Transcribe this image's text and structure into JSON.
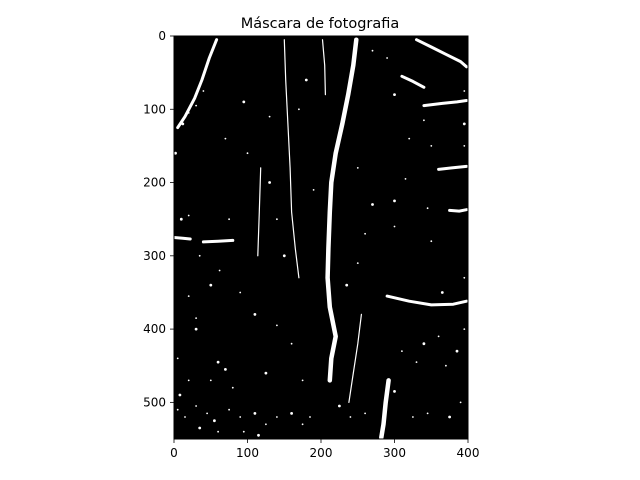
{
  "chart_data": {
    "type": "heatmap",
    "title": "Máscara de fotografia",
    "xlabel": "",
    "ylabel": "",
    "xlim": [
      0,
      400
    ],
    "ylim": [
      550,
      0
    ],
    "x_ticks": [
      0,
      100,
      200,
      300,
      400
    ],
    "y_ticks": [
      0,
      100,
      200,
      300,
      400,
      500
    ],
    "x_tick_labels": [
      "0",
      "100",
      "200",
      "300",
      "400"
    ],
    "y_tick_labels": [
      "0",
      "100",
      "200",
      "300",
      "400",
      "500"
    ],
    "colormap": "binary mask (black background, white foreground)",
    "background_color": "#000000",
    "foreground_color": "#ffffff",
    "grid": false,
    "mask_features": [
      {
        "kind": "main-vertical-crack",
        "points": [
          [
            248,
            5
          ],
          [
            244,
            40
          ],
          [
            237,
            80
          ],
          [
            229,
            120
          ],
          [
            220,
            160
          ],
          [
            214,
            200
          ],
          [
            212,
            240
          ],
          [
            210,
            290
          ],
          [
            209,
            330
          ],
          [
            212,
            370
          ],
          [
            220,
            410
          ],
          [
            214,
            440
          ],
          [
            212,
            470
          ]
        ]
      },
      {
        "kind": "lower-vertical-crack",
        "points": [
          [
            292,
            470
          ],
          [
            288,
            500
          ],
          [
            285,
            530
          ],
          [
            282,
            548
          ]
        ]
      },
      {
        "kind": "left-diagonal-crack",
        "points": [
          [
            58,
            5
          ],
          [
            48,
            30
          ],
          [
            38,
            60
          ],
          [
            28,
            85
          ],
          [
            15,
            110
          ],
          [
            5,
            125
          ]
        ]
      },
      {
        "kind": "horizontal-crack",
        "points": [
          [
            290,
            355
          ],
          [
            320,
            362
          ],
          [
            350,
            367
          ],
          [
            380,
            366
          ],
          [
            398,
            362
          ]
        ]
      },
      {
        "kind": "horizontal-crack",
        "points": [
          [
            360,
            182
          ],
          [
            378,
            180
          ],
          [
            398,
            178
          ]
        ]
      },
      {
        "kind": "horizontal-crack",
        "points": [
          [
            340,
            95
          ],
          [
            365,
            92
          ],
          [
            385,
            90
          ],
          [
            398,
            88
          ]
        ]
      },
      {
        "kind": "horizontal-crack",
        "points": [
          [
            330,
            5
          ],
          [
            350,
            15
          ],
          [
            370,
            25
          ],
          [
            390,
            35
          ],
          [
            398,
            42
          ]
        ]
      },
      {
        "kind": "horizontal-crack",
        "points": [
          [
            310,
            55
          ],
          [
            325,
            62
          ],
          [
            340,
            70
          ]
        ]
      },
      {
        "kind": "horizontal-crack",
        "points": [
          [
            0,
            275
          ],
          [
            12,
            276
          ],
          [
            22,
            277
          ]
        ]
      },
      {
        "kind": "horizontal-crack",
        "points": [
          [
            40,
            281
          ],
          [
            60,
            280
          ],
          [
            80,
            279
          ]
        ]
      },
      {
        "kind": "horizontal-crack",
        "points": [
          [
            375,
            238
          ],
          [
            388,
            239
          ],
          [
            398,
            237
          ]
        ]
      },
      {
        "kind": "thin-vertical-crack",
        "points": [
          [
            150,
            5
          ],
          [
            152,
            60
          ],
          [
            155,
            120
          ],
          [
            158,
            180
          ],
          [
            160,
            240
          ],
          [
            165,
            290
          ],
          [
            170,
            330
          ]
        ]
      },
      {
        "kind": "thin-vertical-crack",
        "points": [
          [
            118,
            180
          ],
          [
            116,
            240
          ],
          [
            114,
            300
          ]
        ]
      },
      {
        "kind": "thin-vertical-crack",
        "points": [
          [
            255,
            380
          ],
          [
            250,
            420
          ],
          [
            244,
            460
          ],
          [
            238,
            500
          ]
        ]
      },
      {
        "kind": "thin-vertical-crack",
        "points": [
          [
            202,
            5
          ],
          [
            205,
            40
          ],
          [
            206,
            80
          ]
        ]
      }
    ],
    "mask_specks": [
      [
        10,
        250
      ],
      [
        20,
        245
      ],
      [
        35,
        300
      ],
      [
        50,
        340
      ],
      [
        62,
        320
      ],
      [
        90,
        350
      ],
      [
        30,
        400
      ],
      [
        5,
        440
      ],
      [
        20,
        470
      ],
      [
        8,
        490
      ],
      [
        30,
        505
      ],
      [
        45,
        515
      ],
      [
        55,
        525
      ],
      [
        75,
        510
      ],
      [
        90,
        520
      ],
      [
        110,
        515
      ],
      [
        125,
        530
      ],
      [
        140,
        520
      ],
      [
        160,
        515
      ],
      [
        175,
        530
      ],
      [
        185,
        520
      ],
      [
        115,
        545
      ],
      [
        95,
        540
      ],
      [
        60,
        540
      ],
      [
        35,
        535
      ],
      [
        15,
        520
      ],
      [
        5,
        510
      ],
      [
        225,
        505
      ],
      [
        240,
        520
      ],
      [
        260,
        515
      ],
      [
        300,
        485
      ],
      [
        325,
        520
      ],
      [
        345,
        515
      ],
      [
        375,
        520
      ],
      [
        390,
        500
      ],
      [
        370,
        450
      ],
      [
        385,
        430
      ],
      [
        395,
        400
      ],
      [
        360,
        410
      ],
      [
        340,
        420
      ],
      [
        310,
        430
      ],
      [
        330,
        445
      ],
      [
        365,
        350
      ],
      [
        395,
        330
      ],
      [
        320,
        140
      ],
      [
        300,
        80
      ],
      [
        290,
        30
      ],
      [
        270,
        20
      ],
      [
        180,
        60
      ],
      [
        170,
        100
      ],
      [
        130,
        110
      ],
      [
        95,
        90
      ],
      [
        70,
        140
      ],
      [
        100,
        160
      ],
      [
        130,
        200
      ],
      [
        190,
        210
      ],
      [
        250,
        180
      ],
      [
        270,
        230
      ],
      [
        300,
        260
      ],
      [
        350,
        280
      ],
      [
        110,
        380
      ],
      [
        140,
        395
      ],
      [
        160,
        420
      ],
      [
        70,
        455
      ],
      [
        80,
        480
      ],
      [
        50,
        470
      ],
      [
        125,
        460
      ],
      [
        30,
        385
      ],
      [
        395,
        150
      ],
      [
        395,
        120
      ],
      [
        350,
        150
      ],
      [
        340,
        115
      ],
      [
        235,
        340
      ],
      [
        250,
        310
      ],
      [
        175,
        470
      ],
      [
        60,
        445
      ],
      [
        20,
        355
      ],
      [
        75,
        250
      ],
      [
        150,
        300
      ],
      [
        395,
        75
      ],
      [
        20,
        105
      ],
      [
        12,
        120
      ],
      [
        30,
        95
      ],
      [
        40,
        75
      ],
      [
        2,
        160
      ],
      [
        140,
        250
      ],
      [
        260,
        270
      ],
      [
        300,
        225
      ],
      [
        315,
        195
      ],
      [
        345,
        235
      ]
    ]
  }
}
